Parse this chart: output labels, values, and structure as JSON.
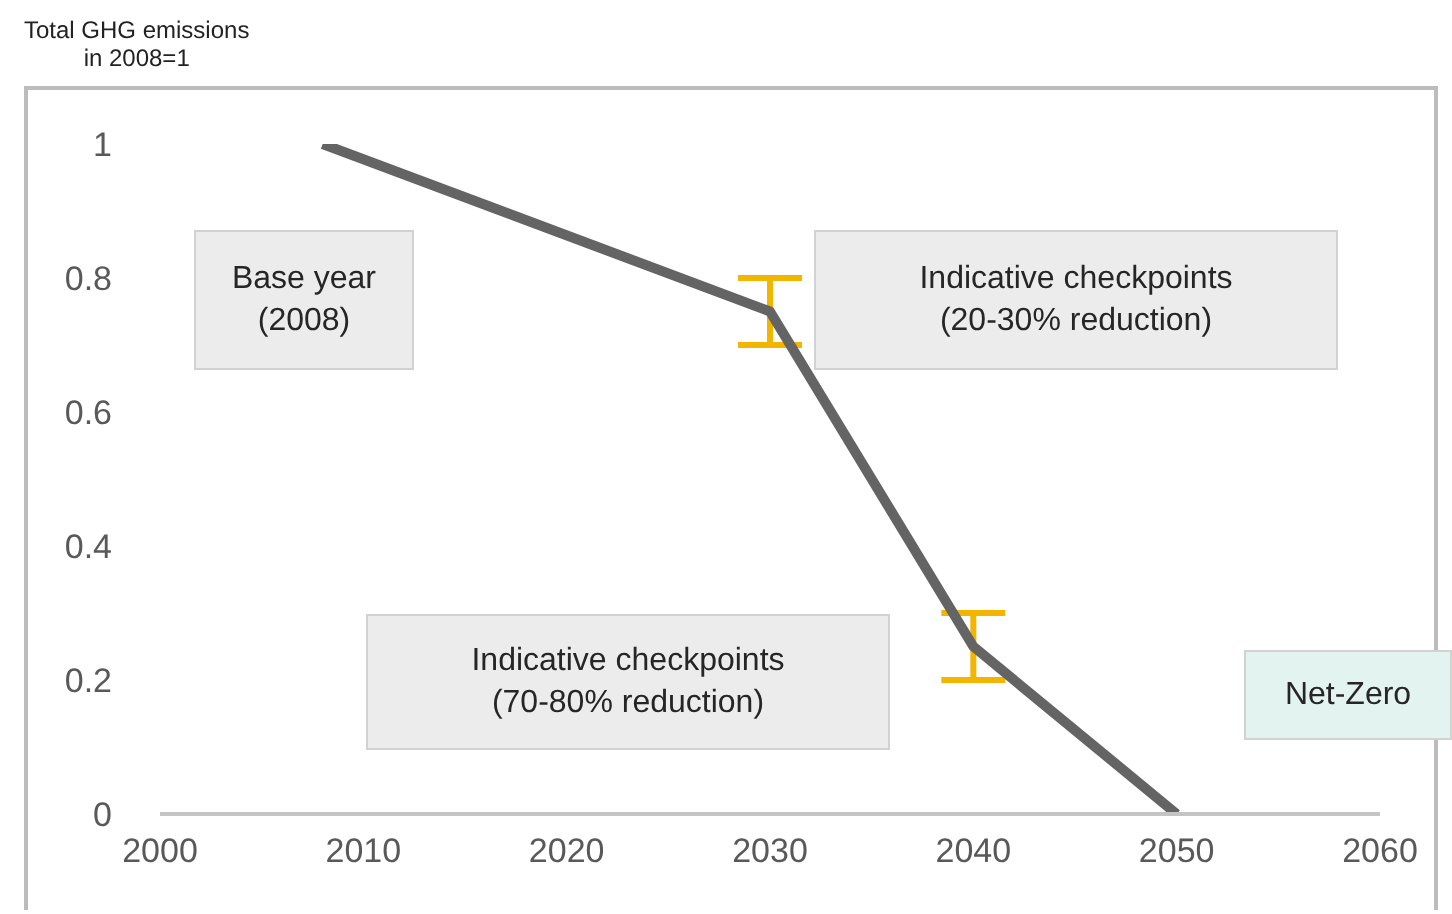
{
  "chart_data": {
    "type": "line",
    "ylabel": "Total GHG emissions\nin 2008=1",
    "x": [
      2008,
      2030,
      2040,
      2050
    ],
    "series": [
      {
        "color": "#646464",
        "values": [
          1,
          0.75,
          0.25,
          0
        ],
        "errors": [
          null,
          [
            0.7,
            0.8
          ],
          [
            0.2,
            0.3
          ],
          null
        ]
      }
    ],
    "xlim": [
      2000,
      2060
    ],
    "xticks": [
      2000,
      2010,
      2020,
      2030,
      2040,
      2050,
      2060
    ],
    "ylim": [
      0,
      1
    ],
    "yticks": [
      0,
      0.2,
      0.4,
      0.6,
      0.8,
      1
    ],
    "grid": false,
    "legend": false,
    "marker": "none",
    "line_style": "solid",
    "annotations": [
      "Base year\n(2008)",
      "Indicative checkpoints\n(20-30% reduction)",
      "Indicative checkpoints\n(70-80% reduction)",
      "Net-Zero"
    ]
  }
}
